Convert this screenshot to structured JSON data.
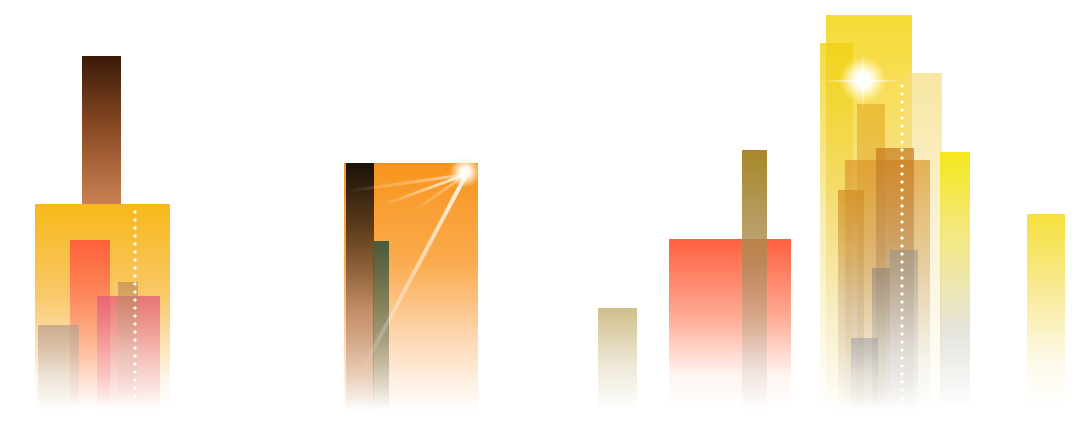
{
  "scene": {
    "background": "#ffffff",
    "palette": {
      "brown": "#5a2a12",
      "orange": "#f7931e",
      "yellow": "#f5e21a",
      "red": "#ff5e3a",
      "pink": "#e86a7a",
      "olive": "#a88a2a",
      "khaki": "#c8b878",
      "grey": "#b0b0b0"
    },
    "groups": [
      {
        "name": "left-cluster",
        "icon": "building-cluster-icon"
      },
      {
        "name": "middle-tower",
        "icon": "sun-glare-icon"
      },
      {
        "name": "right-cluster",
        "icon": "sun-glare-icon"
      }
    ]
  }
}
